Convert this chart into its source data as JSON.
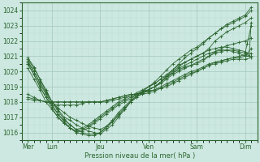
{
  "bg_color": "#cce8e0",
  "grid_major_color": "#aaccc4",
  "grid_minor_color": "#bbddd6",
  "line_color": "#2d6630",
  "xlabel": "Pression niveau de la mer( hPa )",
  "ylim": [
    1015.5,
    1024.5
  ],
  "yticks": [
    1016,
    1017,
    1018,
    1019,
    1020,
    1021,
    1022,
    1023,
    1024
  ],
  "xtick_labels": [
    "Mer",
    "Lun",
    "Jeu",
    "Ven",
    "Sam",
    "Dim"
  ],
  "xtick_positions": [
    0,
    24,
    72,
    120,
    168,
    216
  ],
  "xlim": [
    -6,
    228
  ],
  "xminor_step": 6,
  "lines": [
    {
      "x": [
        0,
        6,
        12,
        18,
        24,
        30,
        36,
        42,
        48,
        54,
        60,
        66,
        72,
        78,
        84,
        90,
        96,
        102,
        108,
        114,
        120,
        126,
        132,
        138,
        144,
        150,
        156,
        162,
        168,
        174,
        180,
        186,
        192,
        198,
        204,
        210,
        216,
        222
      ],
      "y": [
        1020.8,
        1020.2,
        1019.5,
        1018.8,
        1018.0,
        1017.5,
        1017.0,
        1016.8,
        1016.5,
        1016.3,
        1016.1,
        1016.0,
        1015.9,
        1016.2,
        1016.5,
        1017.0,
        1017.5,
        1018.0,
        1018.3,
        1018.6,
        1018.8,
        1019.0,
        1019.3,
        1019.6,
        1020.0,
        1020.3,
        1020.6,
        1020.8,
        1021.0,
        1021.2,
        1021.5,
        1022.0,
        1022.3,
        1022.6,
        1022.8,
        1023.0,
        1023.2,
        1023.5
      ]
    },
    {
      "x": [
        0,
        6,
        12,
        18,
        24,
        30,
        36,
        42,
        48,
        54,
        60,
        66,
        72,
        78,
        84,
        90,
        96,
        102,
        108,
        114,
        120,
        126,
        132,
        138,
        144,
        150,
        156,
        162,
        168,
        174,
        180,
        186,
        192,
        198,
        204,
        210,
        216,
        222
      ],
      "y": [
        1020.5,
        1019.8,
        1019.0,
        1018.3,
        1017.8,
        1017.2,
        1016.8,
        1016.5,
        1016.2,
        1016.0,
        1015.9,
        1015.9,
        1016.0,
        1016.3,
        1016.7,
        1017.2,
        1017.6,
        1018.0,
        1018.3,
        1018.6,
        1018.8,
        1019.0,
        1019.3,
        1019.7,
        1020.1,
        1020.5,
        1020.9,
        1021.2,
        1021.5,
        1021.8,
        1022.2,
        1022.5,
        1022.8,
        1023.0,
        1023.2,
        1023.4,
        1023.6,
        1024.0
      ]
    },
    {
      "x": [
        0,
        6,
        12,
        18,
        24,
        30,
        36,
        42,
        48,
        54,
        60,
        66,
        72,
        78,
        84,
        90,
        96,
        102,
        108,
        114,
        120,
        126,
        132,
        138,
        144,
        150,
        156,
        162,
        168,
        174,
        180,
        186,
        192,
        198,
        204,
        210,
        216,
        222
      ],
      "y": [
        1020.2,
        1019.5,
        1018.8,
        1018.0,
        1017.5,
        1017.0,
        1016.6,
        1016.3,
        1016.0,
        1015.9,
        1015.8,
        1015.8,
        1016.0,
        1016.4,
        1016.8,
        1017.3,
        1017.7,
        1018.1,
        1018.4,
        1018.7,
        1019.0,
        1019.3,
        1019.7,
        1020.1,
        1020.5,
        1020.8,
        1021.1,
        1021.4,
        1021.6,
        1021.9,
        1022.2,
        1022.5,
        1022.8,
        1023.1,
        1023.3,
        1023.5,
        1023.7,
        1024.2
      ]
    },
    {
      "x": [
        0,
        6,
        12,
        18,
        24,
        30,
        36,
        42,
        48,
        54,
        60,
        66,
        72,
        78,
        84,
        90,
        96,
        102,
        108,
        114,
        120,
        126,
        132,
        138,
        144,
        150,
        156,
        162,
        168,
        174,
        180,
        186,
        192,
        198,
        204,
        210,
        216,
        222
      ],
      "y": [
        1020.6,
        1020.0,
        1019.3,
        1018.6,
        1018.0,
        1017.6,
        1017.3,
        1017.0,
        1016.8,
        1016.6,
        1016.4,
        1016.3,
        1016.2,
        1016.4,
        1016.7,
        1017.1,
        1017.5,
        1018.0,
        1018.4,
        1018.7,
        1019.0,
        1019.2,
        1019.5,
        1019.7,
        1019.9,
        1020.1,
        1020.3,
        1020.4,
        1020.5,
        1020.7,
        1021.0,
        1021.3,
        1021.5,
        1021.7,
        1021.8,
        1021.9,
        1022.0,
        1022.2
      ]
    },
    {
      "x": [
        0,
        6,
        12,
        18,
        24,
        30,
        36,
        42,
        48,
        54,
        60,
        66,
        72,
        78,
        84,
        90,
        96,
        102,
        108,
        114,
        120,
        126,
        132,
        138,
        144,
        150,
        156,
        162,
        168,
        174,
        180,
        186,
        192,
        198,
        204,
        210,
        216,
        222
      ],
      "y": [
        1018.5,
        1018.3,
        1018.1,
        1018.0,
        1017.9,
        1017.8,
        1017.8,
        1017.8,
        1017.8,
        1017.9,
        1018.0,
        1018.0,
        1018.0,
        1018.1,
        1018.2,
        1018.3,
        1018.4,
        1018.5,
        1018.5,
        1018.6,
        1018.7,
        1018.8,
        1018.9,
        1019.0,
        1019.2,
        1019.4,
        1019.6,
        1019.8,
        1020.0,
        1020.2,
        1020.4,
        1020.6,
        1020.7,
        1020.8,
        1020.9,
        1021.0,
        1021.1,
        1021.2
      ]
    },
    {
      "x": [
        0,
        6,
        12,
        18,
        24,
        30,
        36,
        42,
        48,
        54,
        60,
        66,
        72,
        78,
        84,
        90,
        96,
        102,
        108,
        114,
        120,
        126,
        132,
        138,
        144,
        150,
        156,
        162,
        168,
        174,
        180,
        186,
        192,
        198,
        204,
        210,
        216,
        222
      ],
      "y": [
        1018.3,
        1018.2,
        1018.1,
        1018.0,
        1018.0,
        1018.0,
        1018.0,
        1018.0,
        1018.0,
        1018.0,
        1018.0,
        1018.0,
        1018.0,
        1018.1,
        1018.2,
        1018.3,
        1018.4,
        1018.5,
        1018.5,
        1018.6,
        1018.7,
        1018.8,
        1019.0,
        1019.2,
        1019.4,
        1019.6,
        1019.8,
        1020.0,
        1020.1,
        1020.3,
        1020.5,
        1020.6,
        1020.7,
        1020.8,
        1020.9,
        1020.9,
        1021.0,
        1021.0
      ]
    },
    {
      "x": [
        0,
        6,
        12,
        18,
        24,
        30,
        36,
        42,
        48,
        54,
        60,
        66,
        72,
        78,
        84,
        90,
        96,
        102,
        108,
        114,
        120,
        126,
        132,
        138,
        144,
        150,
        156,
        162,
        168,
        174,
        180,
        186,
        192,
        198,
        204,
        210,
        216,
        222
      ],
      "y": [
        1018.2,
        1018.1,
        1018.1,
        1018.0,
        1018.0,
        1018.0,
        1018.0,
        1018.0,
        1018.0,
        1018.0,
        1018.0,
        1018.0,
        1018.0,
        1018.0,
        1018.1,
        1018.2,
        1018.3,
        1018.4,
        1018.4,
        1018.5,
        1018.6,
        1018.7,
        1018.9,
        1019.1,
        1019.3,
        1019.5,
        1019.7,
        1019.9,
        1020.0,
        1020.2,
        1020.4,
        1020.5,
        1020.6,
        1020.7,
        1020.8,
        1020.8,
        1020.8,
        1020.9
      ]
    },
    {
      "x": [
        0,
        6,
        12,
        18,
        24,
        30,
        36,
        42,
        48,
        54,
        60,
        66,
        72,
        78,
        84,
        90,
        96,
        102,
        108,
        114,
        120,
        126,
        132,
        138,
        144,
        150,
        156,
        162,
        168,
        174,
        180,
        186,
        192,
        198,
        204,
        210,
        216,
        218,
        222
      ],
      "y": [
        1020.7,
        1020.0,
        1019.2,
        1018.5,
        1017.8,
        1017.2,
        1016.7,
        1016.3,
        1016.0,
        1016.1,
        1016.3,
        1016.6,
        1016.9,
        1017.2,
        1017.5,
        1017.8,
        1018.0,
        1018.2,
        1018.5,
        1018.7,
        1018.8,
        1019.0,
        1019.2,
        1019.5,
        1019.8,
        1020.0,
        1020.2,
        1020.4,
        1020.6,
        1020.8,
        1021.0,
        1021.2,
        1021.3,
        1021.4,
        1021.4,
        1021.3,
        1021.2,
        1021.8,
        1023.0
      ]
    },
    {
      "x": [
        0,
        6,
        12,
        18,
        24,
        30,
        36,
        42,
        48,
        54,
        60,
        66,
        72,
        78,
        84,
        90,
        96,
        102,
        108,
        114,
        120,
        126,
        132,
        138,
        144,
        150,
        156,
        162,
        168,
        174,
        180,
        186,
        192,
        198,
        204,
        210,
        216,
        220,
        222
      ],
      "y": [
        1020.9,
        1020.3,
        1019.5,
        1018.7,
        1018.0,
        1017.4,
        1016.9,
        1016.5,
        1016.2,
        1016.3,
        1016.5,
        1016.8,
        1017.1,
        1017.4,
        1017.7,
        1018.0,
        1018.2,
        1018.4,
        1018.6,
        1018.8,
        1019.0,
        1019.2,
        1019.5,
        1019.8,
        1020.1,
        1020.4,
        1020.6,
        1020.8,
        1021.0,
        1021.2,
        1021.4,
        1021.5,
        1021.6,
        1021.6,
        1021.5,
        1021.4,
        1021.3,
        1021.0,
        1023.2
      ]
    },
    {
      "x": [
        0,
        6,
        12,
        18,
        24,
        30,
        36,
        42,
        48,
        54,
        60,
        66,
        72,
        78,
        84,
        90,
        96,
        102,
        108,
        114,
        120,
        126,
        132,
        138,
        144,
        150,
        156,
        162,
        168,
        174,
        180,
        186,
        192,
        198,
        204,
        210,
        216,
        222
      ],
      "y": [
        1020.5,
        1019.8,
        1019.0,
        1018.3,
        1017.6,
        1017.0,
        1016.6,
        1016.3,
        1016.1,
        1016.2,
        1016.4,
        1016.7,
        1017.0,
        1017.3,
        1017.6,
        1017.9,
        1018.1,
        1018.3,
        1018.5,
        1018.7,
        1018.8,
        1019.0,
        1019.3,
        1019.6,
        1019.9,
        1020.2,
        1020.4,
        1020.6,
        1020.8,
        1021.0,
        1021.2,
        1021.3,
        1021.4,
        1021.4,
        1021.3,
        1021.2,
        1021.0,
        1021.5
      ]
    }
  ]
}
